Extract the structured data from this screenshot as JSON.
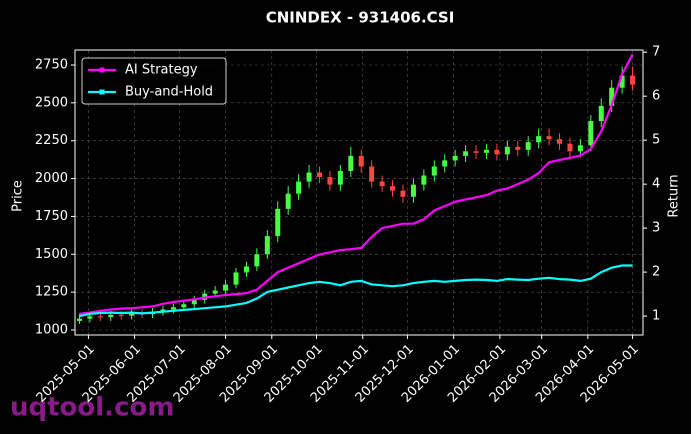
{
  "chart_data": {
    "type": "candlestick",
    "title": "CNINDEX - 931406.CSI",
    "y_label": "Price",
    "y2_label": "Return",
    "watermark": "uqtool.com",
    "x": [
      "2025-04-25",
      "2025-05-02",
      "2025-05-09",
      "2025-05-16",
      "2025-05-23",
      "2025-05-30",
      "2025-06-06",
      "2025-06-13",
      "2025-06-20",
      "2025-06-27",
      "2025-07-04",
      "2025-07-11",
      "2025-07-18",
      "2025-07-25",
      "2025-08-01",
      "2025-08-08",
      "2025-08-15",
      "2025-08-22",
      "2025-08-29",
      "2025-09-05",
      "2025-09-12",
      "2025-09-19",
      "2025-09-26",
      "2025-10-03",
      "2025-10-10",
      "2025-10-17",
      "2025-10-24",
      "2025-10-31",
      "2025-11-07",
      "2025-11-14",
      "2025-11-21",
      "2025-11-28",
      "2025-12-05",
      "2025-12-12",
      "2025-12-19",
      "2025-12-26",
      "2026-01-02",
      "2026-01-09",
      "2026-01-16",
      "2026-01-23",
      "2026-01-30",
      "2026-02-06",
      "2026-02-13",
      "2026-02-20",
      "2026-02-27",
      "2026-03-06",
      "2026-03-13",
      "2026-03-20",
      "2026-03-27",
      "2026-04-03",
      "2026-04-10",
      "2026-04-17",
      "2026-04-24",
      "2026-05-01"
    ],
    "open": [
      1060,
      1075,
      1090,
      1085,
      1100,
      1095,
      1110,
      1105,
      1120,
      1135,
      1150,
      1170,
      1200,
      1240,
      1260,
      1300,
      1380,
      1420,
      1500,
      1620,
      1800,
      1900,
      1980,
      2040,
      2010,
      1960,
      2050,
      2150,
      2080,
      1980,
      1950,
      1920,
      1880,
      1960,
      2020,
      2080,
      2120,
      2150,
      2180,
      2170,
      2190,
      2160,
      2210,
      2190,
      2240,
      2280,
      2260,
      2230,
      2180,
      2220,
      2380,
      2480,
      2600,
      2680
    ],
    "high": [
      1105,
      1120,
      1115,
      1125,
      1125,
      1135,
      1135,
      1145,
      1160,
      1175,
      1195,
      1225,
      1265,
      1290,
      1330,
      1410,
      1450,
      1540,
      1660,
      1850,
      1950,
      2030,
      2090,
      2080,
      2050,
      2090,
      2210,
      2190,
      2120,
      2020,
      1990,
      1960,
      2000,
      2060,
      2120,
      2160,
      2190,
      2220,
      2220,
      2230,
      2230,
      2250,
      2250,
      2280,
      2330,
      2330,
      2300,
      2270,
      2260,
      2420,
      2530,
      2650,
      2740,
      2740
    ],
    "low": [
      1040,
      1050,
      1060,
      1060,
      1070,
      1070,
      1080,
      1080,
      1095,
      1110,
      1125,
      1145,
      1175,
      1215,
      1235,
      1275,
      1350,
      1390,
      1470,
      1580,
      1760,
      1860,
      1940,
      1970,
      1920,
      1920,
      2010,
      2040,
      1940,
      1910,
      1880,
      1840,
      1840,
      1920,
      1980,
      2040,
      2080,
      2110,
      2130,
      2130,
      2120,
      2120,
      2150,
      2150,
      2200,
      2220,
      2190,
      2140,
      2140,
      2180,
      2340,
      2440,
      2560,
      2580
    ],
    "close": [
      1075,
      1090,
      1085,
      1100,
      1095,
      1110,
      1105,
      1120,
      1135,
      1150,
      1170,
      1200,
      1240,
      1260,
      1300,
      1380,
      1420,
      1500,
      1620,
      1800,
      1900,
      1980,
      2040,
      2010,
      1960,
      2050,
      2150,
      2080,
      1980,
      1950,
      1920,
      1880,
      1960,
      2020,
      2080,
      2120,
      2150,
      2180,
      2170,
      2190,
      2160,
      2210,
      2190,
      2240,
      2280,
      2260,
      2230,
      2180,
      2220,
      2380,
      2480,
      2600,
      2680,
      2620
    ],
    "up_color": "#44ff44",
    "down_color": "#ff4444",
    "series": [
      {
        "name": "AI Strategy",
        "color": "#ff00ff",
        "axis": "y2",
        "values": [
          1.05,
          1.08,
          1.12,
          1.15,
          1.17,
          1.18,
          1.2,
          1.22,
          1.28,
          1.32,
          1.35,
          1.38,
          1.42,
          1.45,
          1.48,
          1.5,
          1.52,
          1.6,
          1.8,
          2.0,
          2.1,
          2.2,
          2.3,
          2.4,
          2.45,
          2.5,
          2.52,
          2.55,
          2.8,
          3.0,
          3.05,
          3.1,
          3.1,
          3.2,
          3.4,
          3.5,
          3.6,
          3.65,
          3.7,
          3.75,
          3.85,
          3.9,
          4.0,
          4.1,
          4.25,
          4.5,
          4.55,
          4.6,
          4.65,
          4.8,
          5.2,
          5.8,
          6.5,
          6.95
        ]
      },
      {
        "name": "Buy-and-Hold",
        "color": "#00ffff",
        "axis": "y2",
        "values": [
          1.0,
          1.05,
          1.07,
          1.08,
          1.07,
          1.08,
          1.06,
          1.08,
          1.1,
          1.12,
          1.14,
          1.16,
          1.18,
          1.2,
          1.22,
          1.26,
          1.3,
          1.4,
          1.55,
          1.6,
          1.65,
          1.7,
          1.75,
          1.78,
          1.75,
          1.7,
          1.78,
          1.8,
          1.72,
          1.7,
          1.68,
          1.7,
          1.75,
          1.78,
          1.8,
          1.78,
          1.8,
          1.82,
          1.83,
          1.82,
          1.8,
          1.84,
          1.83,
          1.82,
          1.85,
          1.87,
          1.84,
          1.83,
          1.8,
          1.85,
          2.0,
          2.1,
          2.15,
          2.15
        ]
      }
    ],
    "xlim": [
      "2025-04-22",
      "2026-05-08"
    ],
    "xticks": [
      "2025-05-01",
      "2025-06-01",
      "2025-07-01",
      "2025-08-01",
      "2025-09-01",
      "2025-10-01",
      "2025-11-01",
      "2025-12-01",
      "2026-01-01",
      "2026-02-01",
      "2026-03-01",
      "2026-04-01",
      "2026-05-01"
    ],
    "ylim": [
      967,
      2849
    ],
    "yticks": [
      1000,
      1250,
      1500,
      1750,
      2000,
      2250,
      2500,
      2750
    ],
    "y2lim": [
      0.57,
      7.05
    ],
    "y2ticks": [
      1,
      2,
      3,
      4,
      5,
      6,
      7
    ],
    "grid": true,
    "legend": "upper left"
  }
}
